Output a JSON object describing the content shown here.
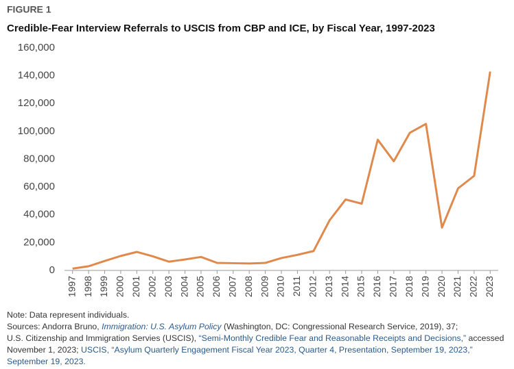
{
  "chart_data": {
    "type": "line",
    "label": "FIGURE 1",
    "title": "Credible-Fear Interview Referrals to USCIS from CBP and ICE, by Fiscal Year, 1997-2023",
    "categories": [
      "1997",
      "1998",
      "1999",
      "2000",
      "2001",
      "2002",
      "2003",
      "2004",
      "2005",
      "2006",
      "2007",
      "2008",
      "2009",
      "2010",
      "2011",
      "2012",
      "2013",
      "2014",
      "2015",
      "2016",
      "2017",
      "2018",
      "2019",
      "2020",
      "2021",
      "2022",
      "2023"
    ],
    "values": [
      1300,
      3000,
      6800,
      10400,
      13300,
      10100,
      6300,
      7900,
      9700,
      5400,
      5200,
      5000,
      5400,
      8900,
      11200,
      13900,
      36000,
      51000,
      48000,
      94000,
      78500,
      99000,
      105400,
      30800,
      59000,
      68000,
      143000
    ],
    "color": "#e0894c",
    "ylim": [
      0,
      160000
    ],
    "yticks": [
      0,
      {
        "value": 20000,
        "label": "20,000"
      },
      {
        "value": 40000,
        "label": "40,000"
      },
      {
        "value": 60000,
        "label": "60,000"
      },
      {
        "value": 80000,
        "label": "80,000"
      },
      {
        "value": 100000,
        "label": "100,000"
      },
      {
        "value": 120000,
        "label": "120,000"
      },
      {
        "value": 140000,
        "label": "140,000"
      },
      {
        "value": 160000,
        "label": "160,000"
      }
    ],
    "grid": false
  },
  "notes": {
    "note": "Note: Data represent individuals.",
    "sources": [
      {
        "text": "Sources: Andorra Bruno, ",
        "style": "plain"
      },
      {
        "text": "Immigration: U.S. Asylum Policy",
        "style": "italic"
      },
      {
        "text": " (Washington, DC: Congressional Research Service, 2019), 37;",
        "style": "plain",
        "break": true
      },
      {
        "text": "U.S. Citizenship and Immigration Servies (USCIS), ",
        "style": "plain"
      },
      {
        "text": "“Semi-Monthly Credible Fear and Reasonable Receipts and Decisions,”",
        "style": "link"
      },
      {
        "text": " accessed November 1, 2023; ",
        "style": "plain"
      },
      {
        "text": "USCIS, “Asylum Quarterly Engagement Fiscal Year 2023, Quarter 4, Presentation, September 19, 2023,” September 19, 2023.",
        "style": "link"
      }
    ]
  }
}
